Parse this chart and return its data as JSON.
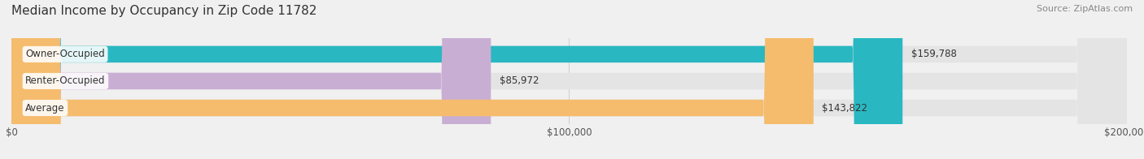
{
  "title": "Median Income by Occupancy in Zip Code 11782",
  "source": "Source: ZipAtlas.com",
  "categories": [
    "Owner-Occupied",
    "Renter-Occupied",
    "Average"
  ],
  "values": [
    159788,
    85972,
    143822
  ],
  "labels": [
    "$159,788",
    "$85,972",
    "$143,822"
  ],
  "bar_colors": [
    "#29b8c2",
    "#c9aed4",
    "#f5bc6e"
  ],
  "xlim": [
    0,
    200000
  ],
  "xtick_labels": [
    "$0",
    "$100,000",
    "$200,000"
  ],
  "background_color": "#f0f0f0",
  "bar_background_color": "#e4e4e4",
  "title_fontsize": 11,
  "label_fontsize": 8.5,
  "cat_fontsize": 8.5,
  "tick_fontsize": 8.5,
  "source_fontsize": 8
}
